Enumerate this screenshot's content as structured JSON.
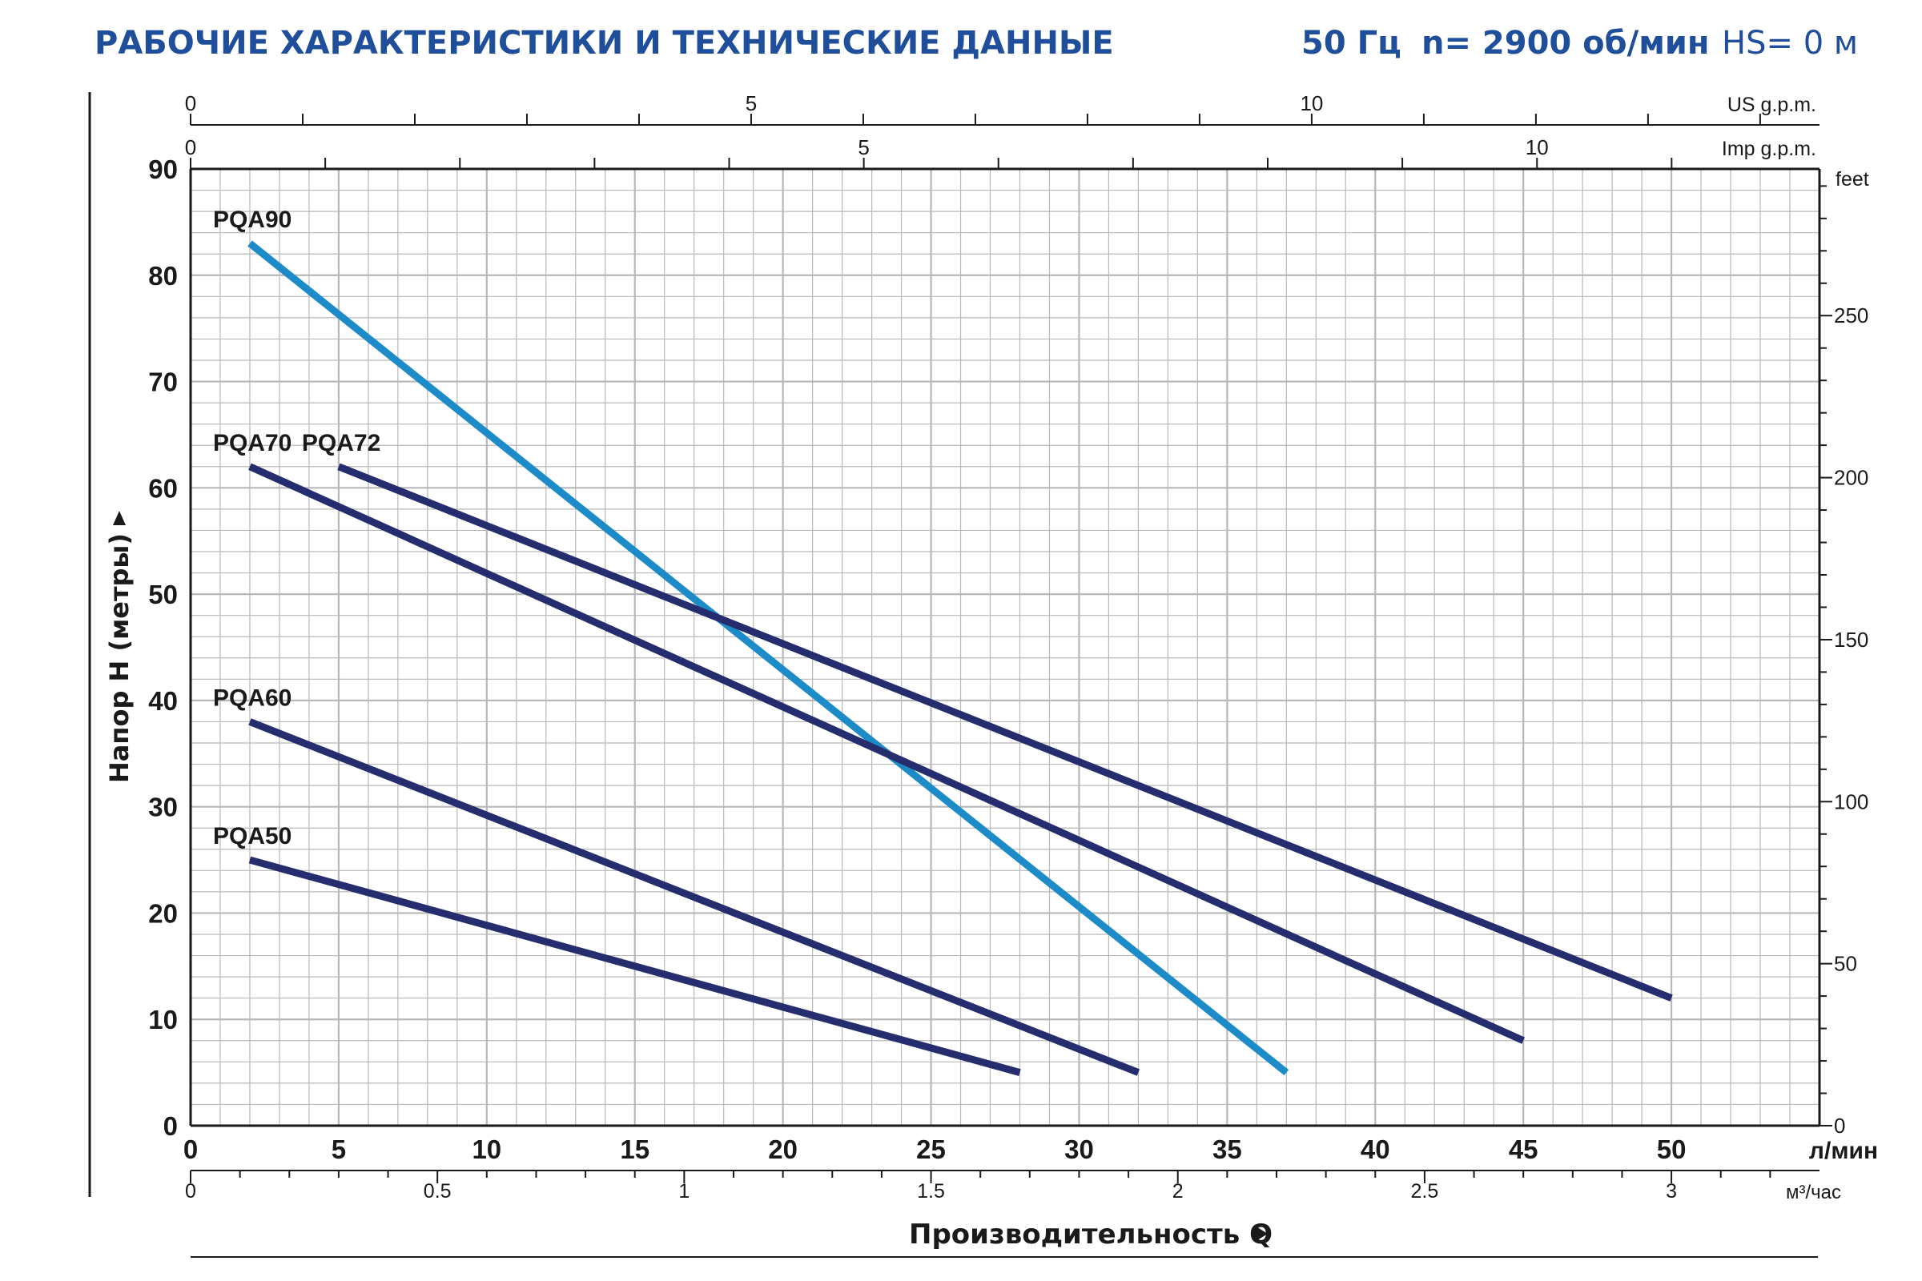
{
  "header": {
    "title": "РАБОЧИЕ ХАРАКТЕРИСТИКИ И ТЕХНИЧЕСКИЕ ДАННЫЕ",
    "freq": "50 Гц",
    "speed": "n= 2900 об/мин",
    "hs": "HS= 0 м"
  },
  "colors": {
    "title": "#1f4e9a",
    "grid": "#b8b8b8",
    "axis": "#1a1a1a",
    "pqa90": "#1e8bc9",
    "others": "#262d6e"
  },
  "chart_data": {
    "type": "line",
    "xlabel": "Производительность Q",
    "ylabel": "Напор H (метры)",
    "xlim": [
      0,
      55
    ],
    "ylim": [
      0,
      90
    ],
    "x_unit": "л/мин",
    "grid": true,
    "x_ticks": [
      "0",
      "5",
      "10",
      "15",
      "20",
      "25",
      "30",
      "35",
      "40",
      "45",
      "50"
    ],
    "y_ticks": [
      "0",
      "10",
      "20",
      "30",
      "40",
      "50",
      "60",
      "70",
      "80",
      "90"
    ],
    "secondary_axes": {
      "us_gpm": {
        "unit": "US g.p.m.",
        "ticks": [
          "0",
          "5",
          "10"
        ]
      },
      "imp_gpm": {
        "unit": "Imp g.p.m.",
        "ticks": [
          "0",
          "5",
          "10"
        ]
      },
      "feet": {
        "unit": "feet",
        "ticks": [
          "0",
          "50",
          "100",
          "150",
          "200",
          "250"
        ]
      },
      "m3h": {
        "unit": "м³/час",
        "ticks": [
          "0",
          "0.5",
          "1",
          "1.5",
          "2",
          "2.5",
          "3"
        ]
      }
    },
    "series": [
      {
        "name": "PQA90",
        "x": [
          2,
          37
        ],
        "y": [
          83,
          5
        ]
      },
      {
        "name": "PQA70",
        "x": [
          2,
          45
        ],
        "y": [
          62,
          8
        ]
      },
      {
        "name": "PQA72",
        "x": [
          5,
          50
        ],
        "y": [
          62,
          12
        ]
      },
      {
        "name": "PQA60",
        "x": [
          2,
          32
        ],
        "y": [
          38,
          5
        ]
      },
      {
        "name": "PQA50",
        "x": [
          2,
          28
        ],
        "y": [
          25,
          5
        ]
      }
    ]
  }
}
